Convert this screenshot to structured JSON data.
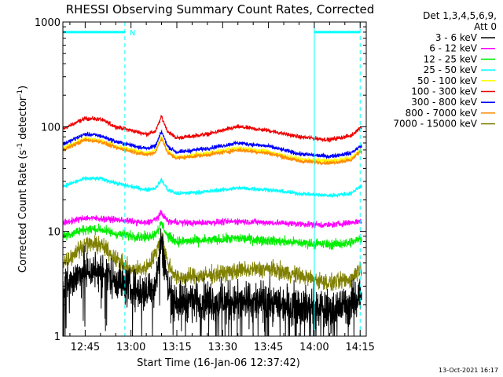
{
  "chart_data": {
    "type": "line",
    "title": "RHESSI Observing Summary Count Rates, Corrected",
    "xlabel": "Start Time (16-Jan-06 12:37:42)",
    "ylabel_main": "Corrected Count Rate (s",
    "ylabel_sup1": "-1",
    "ylabel_mid": " detector",
    "ylabel_sup2": "-1",
    "ylabel_end": ")",
    "y_scale": "log",
    "ylim": [
      1,
      1000
    ],
    "xlim": [
      "12:37:42",
      "14:17:00"
    ],
    "y_ticks": [
      {
        "value": 1,
        "label": "1"
      },
      {
        "value": 10,
        "label": "10"
      },
      {
        "value": 100,
        "label": "100"
      },
      {
        "value": 1000,
        "label": "1000"
      }
    ],
    "x_ticks": [
      {
        "time": "12:45",
        "label": "12:45"
      },
      {
        "time": "13:00",
        "label": "13:00"
      },
      {
        "time": "13:15",
        "label": "13:15"
      },
      {
        "time": "13:30",
        "label": "13:30"
      },
      {
        "time": "13:45",
        "label": "13:45"
      },
      {
        "time": "14:00",
        "label": "14:00"
      },
      {
        "time": "14:15",
        "label": "14:15"
      }
    ],
    "legend": {
      "placement": "right",
      "header": [
        "Det 1,3,4,5,6,9,",
        "Att 0"
      ],
      "entries": [
        {
          "label": "3 - 6 keV",
          "color": "#000000"
        },
        {
          "label": "6 - 12 keV",
          "color": "#ff00ff"
        },
        {
          "label": "12 - 25 keV",
          "color": "#00ee00"
        },
        {
          "label": "25 - 50 keV",
          "color": "#00ffff"
        },
        {
          "label": "50 - 100 keV",
          "color": "#ffff00"
        },
        {
          "label": "100 - 300 keV",
          "color": "#ee0000"
        },
        {
          "label": "300 - 800 keV",
          "color": "#0000ff"
        },
        {
          "label": "800 - 7000 keV",
          "color": "#ff8c00"
        },
        {
          "label": "7000 - 15000 keV",
          "color": "#808000"
        }
      ]
    },
    "series": [
      {
        "label": "100 - 300 keV",
        "color": "#ee0000",
        "points": [
          [
            "12:37:42",
            95
          ],
          [
            "12:45",
            120
          ],
          [
            "12:50",
            118
          ],
          [
            "12:55",
            100
          ],
          [
            "13:05",
            85
          ],
          [
            "13:08",
            90
          ],
          [
            "13:10",
            125
          ],
          [
            "13:12",
            90
          ],
          [
            "13:15",
            78
          ],
          [
            "13:25",
            85
          ],
          [
            "13:35",
            100
          ],
          [
            "13:45",
            92
          ],
          [
            "13:55",
            80
          ],
          [
            "14:05",
            75
          ],
          [
            "14:12",
            82
          ],
          [
            "14:15",
            98
          ]
        ]
      },
      {
        "label": "300 - 800 keV",
        "color": "#0000ff",
        "points": [
          [
            "12:37:42",
            68
          ],
          [
            "12:45",
            85
          ],
          [
            "12:50",
            82
          ],
          [
            "12:55",
            72
          ],
          [
            "13:05",
            62
          ],
          [
            "13:08",
            65
          ],
          [
            "13:10",
            90
          ],
          [
            "13:12",
            65
          ],
          [
            "13:15",
            57
          ],
          [
            "13:25",
            62
          ],
          [
            "13:35",
            70
          ],
          [
            "13:45",
            65
          ],
          [
            "13:55",
            55
          ],
          [
            "14:05",
            52
          ],
          [
            "14:12",
            56
          ],
          [
            "14:15",
            65
          ]
        ]
      },
      {
        "label": "50 - 100 keV",
        "color": "#ffff00",
        "points": [
          [
            "12:37:42",
            62
          ],
          [
            "12:45",
            77
          ],
          [
            "12:50",
            74
          ],
          [
            "12:55",
            65
          ],
          [
            "13:05",
            56
          ],
          [
            "13:08",
            59
          ],
          [
            "13:10",
            80
          ],
          [
            "13:12",
            58
          ],
          [
            "13:15",
            51
          ],
          [
            "13:25",
            56
          ],
          [
            "13:35",
            63
          ],
          [
            "13:45",
            58
          ],
          [
            "13:55",
            49
          ],
          [
            "14:05",
            47
          ],
          [
            "14:12",
            50
          ],
          [
            "14:15",
            60
          ]
        ]
      },
      {
        "label": "800 - 7000 keV",
        "color": "#ff8c00",
        "points": [
          [
            "12:37:42",
            60
          ],
          [
            "12:45",
            75
          ],
          [
            "12:50",
            72
          ],
          [
            "12:55",
            63
          ],
          [
            "13:05",
            54
          ],
          [
            "13:08",
            57
          ],
          [
            "13:10",
            78
          ],
          [
            "13:12",
            56
          ],
          [
            "13:15",
            50
          ],
          [
            "13:25",
            54
          ],
          [
            "13:35",
            60
          ],
          [
            "13:45",
            56
          ],
          [
            "13:55",
            47
          ],
          [
            "14:05",
            45
          ],
          [
            "14:12",
            48
          ],
          [
            "14:15",
            58
          ]
        ]
      },
      {
        "label": "25 - 50 keV",
        "color": "#00ffff",
        "points": [
          [
            "12:37:42",
            27
          ],
          [
            "12:45",
            32
          ],
          [
            "12:50",
            32
          ],
          [
            "12:55",
            29
          ],
          [
            "13:05",
            25
          ],
          [
            "13:08",
            26
          ],
          [
            "13:10",
            31
          ],
          [
            "13:12",
            25
          ],
          [
            "13:15",
            23
          ],
          [
            "13:25",
            24
          ],
          [
            "13:35",
            26
          ],
          [
            "13:45",
            25
          ],
          [
            "13:55",
            23
          ],
          [
            "14:05",
            22
          ],
          [
            "14:12",
            23
          ],
          [
            "14:15",
            27
          ]
        ]
      },
      {
        "label": "6 - 12 keV",
        "color": "#ff00ff",
        "points": [
          [
            "12:37:42",
            12
          ],
          [
            "12:45",
            13.5
          ],
          [
            "12:55",
            13
          ],
          [
            "13:05",
            12
          ],
          [
            "13:08",
            13
          ],
          [
            "13:10",
            15
          ],
          [
            "13:12",
            12.5
          ],
          [
            "13:20",
            12
          ],
          [
            "13:35",
            12.5
          ],
          [
            "13:50",
            12
          ],
          [
            "14:05",
            11.5
          ],
          [
            "14:15",
            12.5
          ]
        ]
      },
      {
        "label": "12 - 25 keV",
        "color": "#00ee00",
        "points": [
          [
            "12:37:42",
            9
          ],
          [
            "12:45",
            10.5
          ],
          [
            "12:50",
            10.5
          ],
          [
            "12:55",
            9.5
          ],
          [
            "13:05",
            8.8
          ],
          [
            "13:08",
            9.5
          ],
          [
            "13:10",
            12
          ],
          [
            "13:12",
            9
          ],
          [
            "13:15",
            8
          ],
          [
            "13:25",
            8.2
          ],
          [
            "13:35",
            8.6
          ],
          [
            "13:45",
            8.2
          ],
          [
            "13:55",
            7.8
          ],
          [
            "14:05",
            7.5
          ],
          [
            "14:12",
            7.8
          ],
          [
            "14:15",
            8.5
          ]
        ]
      },
      {
        "label": "7000 - 15000 keV",
        "color": "#808000",
        "points": [
          [
            "12:37:42",
            5
          ],
          [
            "12:45",
            7.5
          ],
          [
            "12:50",
            7.5
          ],
          [
            "12:55",
            5.5
          ],
          [
            "13:00",
            4.2
          ],
          [
            "13:05",
            4.5
          ],
          [
            "13:08",
            6
          ],
          [
            "13:10",
            9
          ],
          [
            "13:12",
            5
          ],
          [
            "13:15",
            3.6
          ],
          [
            "13:25",
            3.8
          ],
          [
            "13:35",
            4.2
          ],
          [
            "13:45",
            4.4
          ],
          [
            "13:55",
            3.8
          ],
          [
            "14:05",
            3.2
          ],
          [
            "14:12",
            3.5
          ],
          [
            "14:15",
            4.5
          ]
        ]
      },
      {
        "label": "3 - 6 keV",
        "color": "#000000",
        "points": [
          [
            "12:37:42",
            3
          ],
          [
            "12:45",
            4.2
          ],
          [
            "12:50",
            4.2
          ],
          [
            "12:55",
            3.5
          ],
          [
            "13:00",
            2.8
          ],
          [
            "13:05",
            2.6
          ],
          [
            "13:08",
            3.2
          ],
          [
            "13:10",
            8
          ],
          [
            "13:12",
            3
          ],
          [
            "13:15",
            2.2
          ],
          [
            "13:25",
            2.2
          ],
          [
            "13:35",
            2.1
          ],
          [
            "13:45",
            2.1
          ],
          [
            "13:55",
            2.0
          ],
          [
            "14:05",
            1.8
          ],
          [
            "14:12",
            2.0
          ],
          [
            "14:15",
            2.6
          ]
        ]
      }
    ],
    "attenuator_bars": {
      "color": "#00ffff",
      "level": 800,
      "segments": [
        [
          "12:37:42",
          "12:58:00"
        ],
        [
          "14:00:00",
          "14:15:00"
        ]
      ],
      "label": "N",
      "label_time": "12:58:30"
    },
    "solid_vlines": {
      "color": "#00ffff",
      "times": [
        "12:37:42",
        "14:00:00"
      ]
    },
    "dashed_vlines": {
      "color": "#00ffff",
      "times": [
        "12:58:00",
        "14:15:00"
      ]
    },
    "grid": false
  },
  "timestamp": "13-Oct-2021 16:17"
}
